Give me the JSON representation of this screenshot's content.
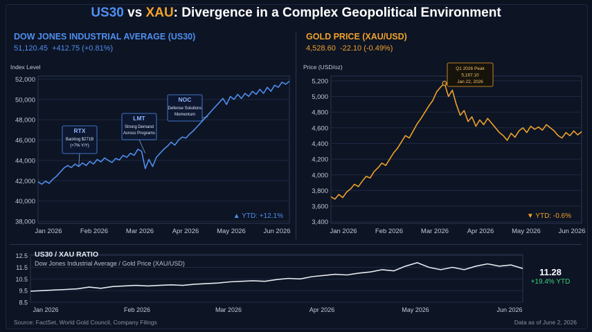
{
  "title": {
    "part1": "US30",
    "vs": " vs ",
    "part2": "XAU",
    "rest": ": Divergence in a Complex Geopolitical Environment"
  },
  "colors": {
    "us": "#4f8fef",
    "gold": "#f0a22a",
    "ratio": "#e6e9f0",
    "positive": "#3ad17a",
    "background": "#0b1220"
  },
  "left_panel": {
    "heading": "DOW JONES INDUSTRIAL AVERAGE (US30)",
    "price": "51,120.45",
    "change": "+412.75 (+0.81%)",
    "ytd": "▲ YTD: +12.1%",
    "annotations": [
      {
        "ticker": "RTX",
        "line1": "Backlog $271B",
        "line2": "(+7% Y/Y)"
      },
      {
        "ticker": "LMT",
        "line1": "Strong Demand",
        "line2": "Across Programs"
      },
      {
        "ticker": "NOC",
        "line1": "Defense Solutions",
        "line2": "Momentum"
      }
    ]
  },
  "right_panel": {
    "heading": "GOLD PRICE (XAU/USD)",
    "price": "4,528.60",
    "change": "-22.10 (-0.49%)",
    "ytd": "▼ YTD: -0.6%",
    "peak_annotation": {
      "line1": "Q1 2026 Peak",
      "line2": "5,167.10",
      "line3": "Jan 22, 2026"
    }
  },
  "ratio_panel": {
    "heading": "US30 / XAU RATIO",
    "subtitle": "Dow Jones Industrial Average / Gold Price (XAU/USD)",
    "value": "11.28",
    "ytd": "+19.4% YTD"
  },
  "footer": {
    "source": "Source: FactSet, World Gold Council, Company Filings",
    "asof": "Data as of June 2, 2026"
  },
  "chart_data": [
    {
      "type": "line",
      "title": "DOW JONES INDUSTRIAL AVERAGE (US30)",
      "ylabel": "Index Level",
      "xlabel": "",
      "x_tick_labels": [
        "Jan 2026",
        "Feb 2026",
        "Mar 2026",
        "Apr 2026",
        "May 2026",
        "Jun 2026"
      ],
      "y_ticks": [
        38000,
        40000,
        42000,
        44000,
        46000,
        48000,
        50000,
        52000
      ],
      "ylim": [
        37800,
        52300
      ],
      "grid": true,
      "series": [
        {
          "points": [
            [
              0,
              41900
            ],
            [
              0.05,
              41650
            ],
            [
              0.1,
              41950
            ],
            [
              0.15,
              41750
            ],
            [
              0.2,
              42150
            ],
            [
              0.25,
              42450
            ],
            [
              0.3,
              42850
            ],
            [
              0.35,
              43250
            ],
            [
              0.4,
              43500
            ],
            [
              0.45,
              43300
            ],
            [
              0.5,
              43650
            ],
            [
              0.55,
              43400
            ],
            [
              0.6,
              43750
            ],
            [
              0.65,
              43500
            ],
            [
              0.7,
              43900
            ],
            [
              0.75,
              43650
            ],
            [
              0.8,
              44100
            ],
            [
              0.85,
              43850
            ],
            [
              0.9,
              44250
            ],
            [
              0.95,
              44000
            ],
            [
              1.0,
              43800
            ],
            [
              1.05,
              44200
            ],
            [
              1.1,
              44050
            ],
            [
              1.15,
              44500
            ],
            [
              1.2,
              44300
            ],
            [
              1.25,
              44700
            ],
            [
              1.3,
              44500
            ],
            [
              1.35,
              45100
            ],
            [
              1.4,
              44900
            ],
            [
              1.45,
              43200
            ],
            [
              1.5,
              44100
            ],
            [
              1.55,
              43400
            ],
            [
              1.6,
              44300
            ],
            [
              1.65,
              44700
            ],
            [
              1.7,
              45100
            ],
            [
              1.75,
              45400
            ],
            [
              1.8,
              45800
            ],
            [
              1.85,
              45500
            ],
            [
              1.9,
              46000
            ],
            [
              1.95,
              46300
            ],
            [
              2.0,
              46200
            ],
            [
              2.05,
              46600
            ],
            [
              2.1,
              46900
            ],
            [
              2.15,
              47300
            ],
            [
              2.2,
              47700
            ],
            [
              2.25,
              48100
            ],
            [
              2.3,
              48500
            ],
            [
              2.35,
              48900
            ],
            [
              2.4,
              49300
            ],
            [
              2.45,
              49700
            ],
            [
              2.5,
              50100
            ],
            [
              2.55,
              49500
            ],
            [
              2.6,
              50300
            ],
            [
              2.65,
              50000
            ],
            [
              2.7,
              50500
            ],
            [
              2.75,
              50100
            ],
            [
              2.8,
              50600
            ],
            [
              2.85,
              50300
            ],
            [
              2.9,
              50800
            ],
            [
              2.95,
              50500
            ],
            [
              3.0,
              51000
            ],
            [
              3.05,
              50600
            ],
            [
              3.1,
              51200
            ],
            [
              3.15,
              50800
            ],
            [
              3.2,
              51400
            ],
            [
              3.25,
              51200
            ],
            [
              3.3,
              51700
            ],
            [
              3.35,
              51500
            ],
            [
              3.4,
              51800
            ]
          ]
        }
      ]
    },
    {
      "type": "line",
      "title": "GOLD PRICE (XAU/USD)",
      "ylabel": "Price (USD/oz)",
      "xlabel": "",
      "x_tick_labels": [
        "Jan 2026",
        "Feb 2026",
        "Mar 2026",
        "Apr 2026",
        "May 2026",
        "Jun 2026"
      ],
      "y_ticks": [
        3400,
        3600,
        3800,
        4000,
        4200,
        4400,
        4600,
        4800,
        5000,
        5200
      ],
      "ylim": [
        3380,
        5260
      ],
      "grid": true,
      "series": [
        {
          "points": [
            [
              0,
              3720
            ],
            [
              0.05,
              3690
            ],
            [
              0.1,
              3750
            ],
            [
              0.15,
              3710
            ],
            [
              0.2,
              3780
            ],
            [
              0.25,
              3820
            ],
            [
              0.3,
              3880
            ],
            [
              0.35,
              3850
            ],
            [
              0.4,
              3920
            ],
            [
              0.45,
              3980
            ],
            [
              0.5,
              3960
            ],
            [
              0.55,
              4040
            ],
            [
              0.6,
              4090
            ],
            [
              0.65,
              4150
            ],
            [
              0.7,
              4120
            ],
            [
              0.75,
              4200
            ],
            [
              0.8,
              4280
            ],
            [
              0.85,
              4340
            ],
            [
              0.9,
              4420
            ],
            [
              0.95,
              4500
            ],
            [
              1.0,
              4470
            ],
            [
              1.05,
              4560
            ],
            [
              1.1,
              4650
            ],
            [
              1.15,
              4720
            ],
            [
              1.2,
              4800
            ],
            [
              1.25,
              4880
            ],
            [
              1.3,
              4950
            ],
            [
              1.35,
              5060
            ],
            [
              1.4,
              5120
            ],
            [
              1.45,
              5167
            ],
            [
              1.5,
              5000
            ],
            [
              1.55,
              5080
            ],
            [
              1.6,
              4900
            ],
            [
              1.65,
              4760
            ],
            [
              1.7,
              4820
            ],
            [
              1.75,
              4680
            ],
            [
              1.8,
              4740
            ],
            [
              1.85,
              4620
            ],
            [
              1.9,
              4700
            ],
            [
              1.95,
              4640
            ],
            [
              2.0,
              4720
            ],
            [
              2.05,
              4660
            ],
            [
              2.1,
              4600
            ],
            [
              2.15,
              4540
            ],
            [
              2.2,
              4500
            ],
            [
              2.25,
              4440
            ],
            [
              2.3,
              4530
            ],
            [
              2.35,
              4480
            ],
            [
              2.4,
              4560
            ],
            [
              2.45,
              4600
            ],
            [
              2.5,
              4540
            ],
            [
              2.55,
              4620
            ],
            [
              2.6,
              4580
            ],
            [
              2.65,
              4610
            ],
            [
              2.7,
              4570
            ],
            [
              2.75,
              4640
            ],
            [
              2.8,
              4600
            ],
            [
              2.85,
              4560
            ],
            [
              2.9,
              4500
            ],
            [
              2.95,
              4470
            ],
            [
              3.0,
              4540
            ],
            [
              3.05,
              4500
            ],
            [
              3.1,
              4560
            ],
            [
              3.15,
              4510
            ],
            [
              3.2,
              4550
            ]
          ]
        }
      ]
    },
    {
      "type": "line",
      "title": "US30 / XAU RATIO",
      "ylabel": "",
      "xlabel": "",
      "x_tick_labels": [
        "Jan 2026",
        "Feb 2026",
        "Mar 2026",
        "Apr 2026",
        "May 2026",
        "Jun 2026"
      ],
      "y_ticks": [
        8.5,
        9.5,
        10.5,
        11.5,
        12.5
      ],
      "ylim": [
        8.5,
        12.6
      ],
      "grid": true,
      "series": [
        {
          "points": [
            [
              0,
              9.45
            ],
            [
              0.1,
              9.5
            ],
            [
              0.2,
              9.55
            ],
            [
              0.3,
              9.6
            ],
            [
              0.4,
              9.65
            ],
            [
              0.5,
              9.8
            ],
            [
              0.6,
              9.7
            ],
            [
              0.7,
              9.85
            ],
            [
              0.8,
              9.9
            ],
            [
              0.9,
              9.95
            ],
            [
              1.0,
              9.9
            ],
            [
              1.1,
              9.95
            ],
            [
              1.2,
              10.0
            ],
            [
              1.3,
              9.95
            ],
            [
              1.4,
              10.05
            ],
            [
              1.5,
              10.1
            ],
            [
              1.6,
              10.15
            ],
            [
              1.7,
              10.25
            ],
            [
              1.8,
              10.3
            ],
            [
              1.9,
              10.35
            ],
            [
              2.0,
              10.3
            ],
            [
              2.1,
              10.45
            ],
            [
              2.2,
              10.55
            ],
            [
              2.3,
              10.5
            ],
            [
              2.4,
              10.7
            ],
            [
              2.5,
              10.8
            ],
            [
              2.6,
              10.9
            ],
            [
              2.7,
              10.85
            ],
            [
              2.8,
              11.0
            ],
            [
              2.9,
              11.1
            ],
            [
              3.0,
              11.3
            ],
            [
              3.1,
              11.2
            ],
            [
              3.2,
              11.6
            ],
            [
              3.3,
              11.9
            ],
            [
              3.4,
              11.5
            ],
            [
              3.5,
              11.3
            ],
            [
              3.6,
              11.5
            ],
            [
              3.7,
              11.3
            ],
            [
              3.8,
              11.6
            ],
            [
              3.9,
              11.8
            ],
            [
              4.0,
              11.6
            ],
            [
              4.1,
              11.7
            ],
            [
              4.2,
              11.4
            ]
          ]
        }
      ]
    }
  ]
}
